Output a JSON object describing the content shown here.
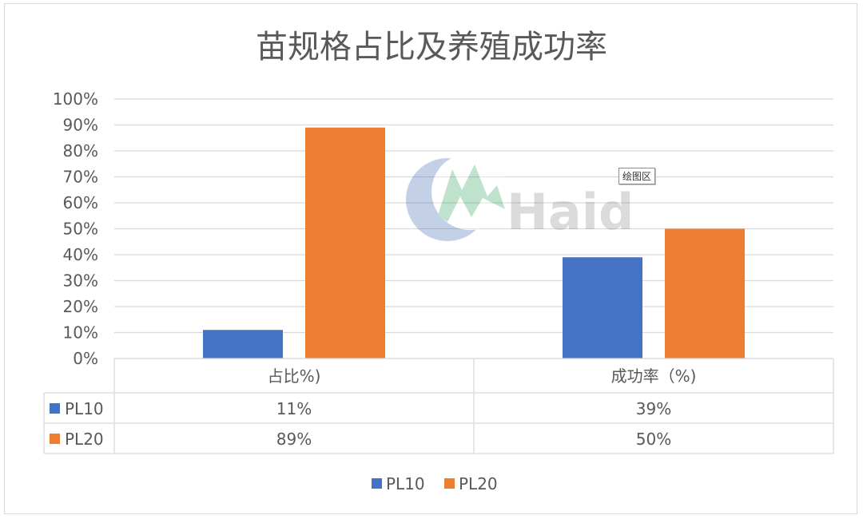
{
  "chart_data": {
    "type": "bar",
    "title": "苗规格占比及养殖成功率",
    "categories": [
      "占比%)",
      "成功率（%)"
    ],
    "series": [
      {
        "name": "PL10",
        "values": [
          11,
          39
        ],
        "labels": [
          "11%",
          "39%"
        ],
        "color": "#4472c4"
      },
      {
        "name": "PL20",
        "values": [
          89,
          50
        ],
        "labels": [
          "89%",
          "50%"
        ],
        "color": "#ed7d31"
      }
    ],
    "yticks": [
      "0%",
      "10%",
      "20%",
      "30%",
      "40%",
      "50%",
      "60%",
      "70%",
      "80%",
      "90%",
      "100%"
    ],
    "ylim": [
      0,
      100
    ],
    "grid": true,
    "legend": "bottom",
    "data_table": true
  },
  "watermark": {
    "text": "Haid"
  },
  "plot_area_label": "绘图区"
}
